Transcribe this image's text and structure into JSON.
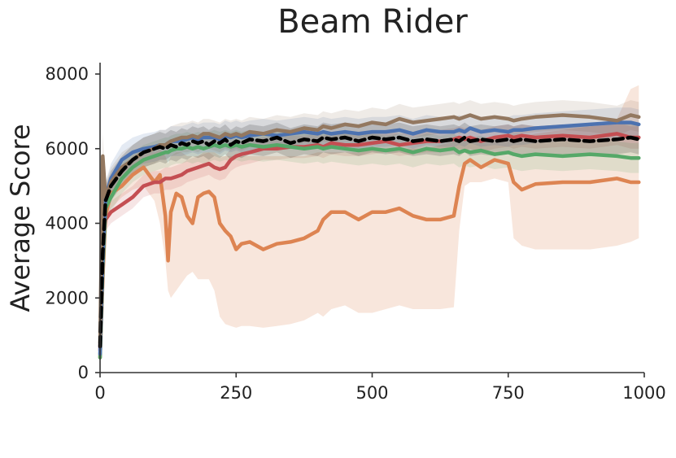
{
  "chart_data": {
    "type": "line",
    "title": "Beam Rider",
    "xlabel": "",
    "ylabel": "Average Score",
    "xlim": [
      0,
      1000
    ],
    "ylim": [
      0,
      8000
    ],
    "x_ticks": [
      "0",
      "250",
      "500",
      "750",
      "1000"
    ],
    "y_ticks": [
      "0",
      "2000",
      "4000",
      "6000",
      "8000"
    ],
    "grid": false,
    "legend": "none",
    "x": [
      0,
      5,
      10,
      20,
      40,
      60,
      80,
      100,
      110,
      120,
      125,
      130,
      140,
      150,
      160,
      170,
      180,
      190,
      200,
      210,
      220,
      230,
      240,
      250,
      260,
      275,
      300,
      325,
      350,
      375,
      400,
      410,
      425,
      450,
      475,
      500,
      525,
      550,
      575,
      600,
      625,
      650,
      660,
      670,
      680,
      700,
      725,
      750,
      760,
      775,
      800,
      850,
      900,
      950,
      975,
      990
    ],
    "series": [
      {
        "color": "#dd8452",
        "values": [
          400,
          2500,
          4200,
          4800,
          5000,
          5300,
          5500,
          5100,
          5300,
          4200,
          3000,
          4300,
          4800,
          4700,
          4200,
          4000,
          4700,
          4800,
          4850,
          4700,
          4000,
          3800,
          3650,
          3300,
          3450,
          3500,
          3300,
          3450,
          3500,
          3600,
          3800,
          4100,
          4300,
          4300,
          4100,
          4300,
          4300,
          4400,
          4200,
          4100,
          4100,
          4200,
          5000,
          5600,
          5700,
          5500,
          5700,
          5600,
          5100,
          4900,
          5050,
          5100,
          5100,
          5200,
          5100,
          5100
        ],
        "band_lower": [
          300,
          1500,
          3800,
          4400,
          4700,
          4900,
          5000,
          4600,
          4000,
          3000,
          2200,
          2000,
          2200,
          2400,
          2600,
          2700,
          2500,
          2500,
          2500,
          2200,
          1500,
          1300,
          1250,
          1200,
          1250,
          1250,
          1200,
          1250,
          1300,
          1400,
          1600,
          1500,
          1700,
          1800,
          1600,
          1600,
          1700,
          1800,
          1700,
          1700,
          1700,
          1750,
          3800,
          5000,
          5100,
          5100,
          5200,
          5100,
          3600,
          3400,
          3300,
          3300,
          3300,
          3400,
          3500,
          3600
        ],
        "band_upper": [
          600,
          3500,
          4800,
          5200,
          5500,
          5800,
          6000,
          5900,
          6000,
          5800,
          5600,
          5800,
          5900,
          5900,
          5800,
          5800,
          5800,
          5900,
          5900,
          5900,
          5800,
          5800,
          5800,
          5800,
          5800,
          5800,
          5800,
          5800,
          5800,
          5800,
          5900,
          5900,
          5900,
          5900,
          5900,
          6000,
          6000,
          6000,
          6000,
          6000,
          6100,
          6200,
          6200,
          6200,
          6300,
          6200,
          6300,
          6200,
          6300,
          6300,
          6400,
          6500,
          6600,
          6800,
          7600,
          7700
        ]
      },
      {
        "color": "#c44e52",
        "values": [
          600,
          3600,
          4100,
          4300,
          4500,
          4700,
          5000,
          5100,
          5100,
          5200,
          5200,
          5200,
          5250,
          5300,
          5400,
          5450,
          5500,
          5550,
          5600,
          5500,
          5450,
          5500,
          5700,
          5800,
          5850,
          5900,
          6000,
          6000,
          6050,
          6050,
          6100,
          6050,
          6150,
          6100,
          6100,
          6150,
          6200,
          6100,
          6150,
          6200,
          6200,
          6250,
          6300,
          6250,
          6300,
          6200,
          6300,
          6350,
          6300,
          6350,
          6300,
          6350,
          6300,
          6400,
          6300,
          6300
        ],
        "band_lower": [
          400,
          3200,
          3800,
          4000,
          4200,
          4400,
          4700,
          4800,
          4800,
          4900,
          4900,
          4900,
          4950,
          5000,
          5100,
          5150,
          5200,
          5250,
          5300,
          5200,
          5150,
          5200,
          5400,
          5500,
          5550,
          5600,
          5700,
          5700,
          5750,
          5750,
          5800,
          5750,
          5850,
          5800,
          5800,
          5850,
          5900,
          5800,
          5850,
          5900,
          5900,
          5950,
          6000,
          5950,
          6000,
          5900,
          6000,
          6050,
          6000,
          6050,
          6000,
          6050,
          6000,
          6100,
          6000,
          6000
        ],
        "band_upper": [
          800,
          4000,
          4400,
          4600,
          4800,
          5000,
          5300,
          5400,
          5400,
          5500,
          5500,
          5500,
          5550,
          5600,
          5700,
          5750,
          5800,
          5850,
          5900,
          5800,
          5750,
          5800,
          6000,
          6100,
          6150,
          6200,
          6300,
          6300,
          6350,
          6350,
          6400,
          6350,
          6450,
          6400,
          6400,
          6450,
          6500,
          6400,
          6450,
          6500,
          6500,
          6550,
          6600,
          6550,
          6600,
          6500,
          6600,
          6650,
          6600,
          6650,
          6600,
          6650,
          6600,
          6700,
          6600,
          6600
        ]
      },
      {
        "color": "#55a868",
        "values": [
          400,
          2800,
          4400,
          4700,
          5200,
          5500,
          5700,
          5800,
          5850,
          5900,
          5900,
          5950,
          6000,
          6000,
          6050,
          6000,
          6050,
          6000,
          6050,
          6100,
          6050,
          6100,
          6050,
          6100,
          6050,
          6100,
          6050,
          6100,
          6050,
          6000,
          6050,
          6000,
          6050,
          6000,
          5950,
          6000,
          5950,
          6000,
          5900,
          6000,
          5950,
          6000,
          5900,
          5950,
          5900,
          5950,
          5850,
          5900,
          5850,
          5800,
          5850,
          5800,
          5850,
          5800,
          5750,
          5750
        ],
        "band_lower": [
          300,
          2400,
          4000,
          4300,
          4800,
          5100,
          5300,
          5400,
          5450,
          5500,
          5500,
          5550,
          5600,
          5600,
          5650,
          5600,
          5650,
          5600,
          5650,
          5700,
          5650,
          5700,
          5650,
          5700,
          5650,
          5700,
          5650,
          5700,
          5650,
          5600,
          5650,
          5600,
          5650,
          5600,
          5550,
          5600,
          5550,
          5600,
          5500,
          5600,
          5550,
          5600,
          5500,
          5550,
          5500,
          5550,
          5450,
          5500,
          5450,
          5400,
          5450,
          5400,
          5450,
          5400,
          5350,
          5350
        ],
        "band_upper": [
          500,
          3200,
          4800,
          5100,
          5600,
          5900,
          6100,
          6200,
          6250,
          6300,
          6300,
          6350,
          6400,
          6400,
          6450,
          6400,
          6450,
          6400,
          6450,
          6500,
          6450,
          6500,
          6450,
          6500,
          6450,
          6500,
          6450,
          6500,
          6450,
          6400,
          6450,
          6400,
          6450,
          6400,
          6350,
          6400,
          6350,
          6400,
          6300,
          6400,
          6350,
          6400,
          6300,
          6350,
          6300,
          6350,
          6250,
          6300,
          6250,
          6200,
          6250,
          6200,
          6250,
          6200,
          6150,
          6150
        ]
      },
      {
        "color": "#4c72b0",
        "values": [
          500,
          3000,
          4700,
          5200,
          5700,
          5900,
          6000,
          6050,
          6100,
          6100,
          6150,
          6200,
          6200,
          6200,
          6250,
          6300,
          6250,
          6300,
          6300,
          6300,
          6250,
          6350,
          6300,
          6350,
          6300,
          6350,
          6400,
          6350,
          6400,
          6450,
          6400,
          6450,
          6400,
          6450,
          6400,
          6450,
          6450,
          6500,
          6400,
          6500,
          6450,
          6450,
          6500,
          6450,
          6550,
          6450,
          6500,
          6450,
          6500,
          6500,
          6550,
          6600,
          6650,
          6700,
          6700,
          6650
        ],
        "band_lower": [
          400,
          2600,
          4300,
          4800,
          5300,
          5500,
          5600,
          5650,
          5700,
          5700,
          5750,
          5800,
          5800,
          5800,
          5850,
          5900,
          5850,
          5900,
          5900,
          5900,
          5850,
          5950,
          5900,
          5950,
          5900,
          5950,
          6000,
          5950,
          6000,
          6050,
          6000,
          6050,
          6000,
          6050,
          6000,
          6050,
          6050,
          6100,
          6000,
          6100,
          6050,
          6050,
          6100,
          6050,
          6150,
          6050,
          6100,
          6050,
          6100,
          6100,
          6150,
          6200,
          6250,
          6300,
          6300,
          6250
        ],
        "band_upper": [
          600,
          3400,
          5100,
          5600,
          6100,
          6300,
          6400,
          6450,
          6500,
          6500,
          6550,
          6600,
          6600,
          6600,
          6650,
          6700,
          6650,
          6700,
          6700,
          6700,
          6650,
          6750,
          6700,
          6750,
          6700,
          6750,
          6800,
          6750,
          6800,
          6850,
          6800,
          6850,
          6800,
          6850,
          6800,
          6850,
          6850,
          6900,
          6800,
          6900,
          6850,
          6850,
          6900,
          6850,
          6950,
          6850,
          6900,
          6850,
          6900,
          6900,
          6950,
          7000,
          7050,
          7100,
          7100,
          7050
        ]
      },
      {
        "color": "#937860",
        "values": [
          800,
          5800,
          4700,
          5100,
          5500,
          5700,
          5900,
          6000,
          6100,
          6100,
          6150,
          6200,
          6250,
          6300,
          6300,
          6350,
          6300,
          6400,
          6400,
          6350,
          6300,
          6400,
          6350,
          6400,
          6350,
          6450,
          6400,
          6500,
          6450,
          6550,
          6500,
          6600,
          6550,
          6650,
          6600,
          6700,
          6650,
          6800,
          6700,
          6750,
          6800,
          6850,
          6800,
          6850,
          6900,
          6800,
          6850,
          6800,
          6750,
          6800,
          6850,
          6900,
          6850,
          6750,
          6900,
          6850
        ],
        "band_lower": [
          500,
          5200,
          4300,
          4700,
          5100,
          5300,
          5500,
          5600,
          5700,
          5700,
          5750,
          5800,
          5850,
          5900,
          5900,
          5950,
          5900,
          6000,
          6000,
          5950,
          5900,
          6000,
          5950,
          6000,
          5950,
          6050,
          6000,
          6100,
          6050,
          6150,
          6100,
          6200,
          6150,
          6250,
          6200,
          6300,
          6250,
          6400,
          6300,
          6350,
          6400,
          6450,
          6400,
          6450,
          6500,
          6400,
          6450,
          6400,
          6350,
          6400,
          6450,
          6500,
          6450,
          6350,
          6500,
          6450
        ],
        "band_upper": [
          1100,
          6400,
          5100,
          5500,
          5900,
          6100,
          6300,
          6400,
          6500,
          6500,
          6550,
          6600,
          6650,
          6700,
          6700,
          6750,
          6700,
          6800,
          6800,
          6750,
          6700,
          6800,
          6750,
          6800,
          6750,
          6850,
          6800,
          6900,
          6850,
          6950,
          6900,
          7000,
          6950,
          7050,
          7000,
          7100,
          7050,
          7200,
          7100,
          7150,
          7200,
          7250,
          7200,
          7250,
          7300,
          7200,
          7250,
          7200,
          7150,
          7200,
          7250,
          7300,
          7250,
          7150,
          7300,
          7250
        ]
      },
      {
        "color": "#000000",
        "dashed": true,
        "values": [
          700,
          3200,
          4600,
          5000,
          5400,
          5700,
          5900,
          6000,
          6050,
          6000,
          6050,
          6100,
          6050,
          6150,
          6100,
          6200,
          6150,
          6200,
          6100,
          6200,
          6150,
          6250,
          6100,
          6200,
          6150,
          6250,
          6200,
          6300,
          6150,
          6250,
          6200,
          6300,
          6250,
          6300,
          6200,
          6300,
          6250,
          6300,
          6200,
          6250,
          6200,
          6250,
          6200,
          6300,
          6200,
          6250,
          6200,
          6250,
          6200,
          6250,
          6200,
          6250,
          6200,
          6250,
          6300,
          6250
        ],
        "band_lower": [
          500,
          2800,
          4200,
          4600,
          5000,
          5300,
          5500,
          5600,
          5650,
          5600,
          5650,
          5700,
          5650,
          5750,
          5700,
          5800,
          5750,
          5800,
          5700,
          5800,
          5750,
          5850,
          5700,
          5800,
          5750,
          5850,
          5800,
          5900,
          5750,
          5850,
          5800,
          5900,
          5850,
          5900,
          5800,
          5900,
          5850,
          5900,
          5800,
          5850,
          5800,
          5850,
          5800,
          5900,
          5800,
          5850,
          5800,
          5850,
          5800,
          5850,
          5800,
          5850,
          5800,
          5850,
          5900,
          5850
        ],
        "band_upper": [
          900,
          3600,
          5000,
          5400,
          5800,
          6100,
          6300,
          6400,
          6450,
          6400,
          6450,
          6500,
          6450,
          6550,
          6500,
          6600,
          6550,
          6600,
          6500,
          6600,
          6550,
          6650,
          6500,
          6600,
          6550,
          6650,
          6600,
          6700,
          6550,
          6650,
          6600,
          6700,
          6650,
          6700,
          6600,
          6700,
          6650,
          6700,
          6600,
          6650,
          6600,
          6650,
          6600,
          6700,
          6600,
          6650,
          6600,
          6650,
          6600,
          6650,
          6600,
          6650,
          6600,
          6650,
          6700,
          6650
        ]
      }
    ]
  }
}
